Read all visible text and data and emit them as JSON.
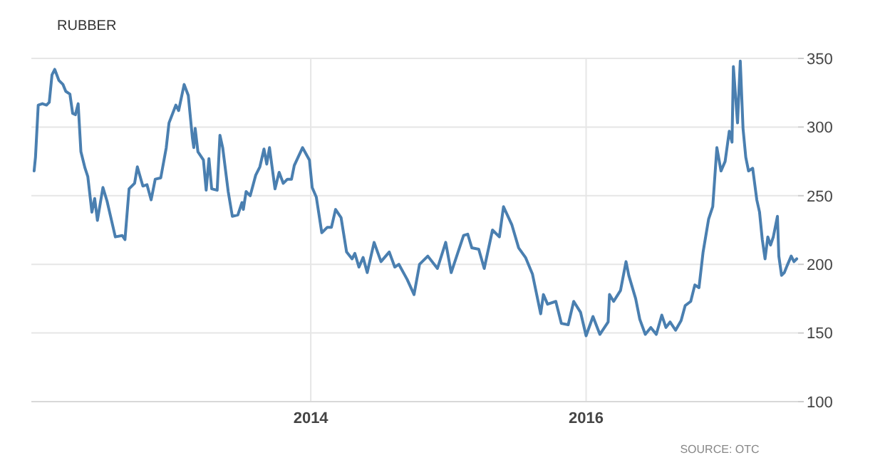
{
  "chart_data": {
    "type": "line",
    "title": "RUBBER",
    "annotations": [
      "SOURCE: OTC"
    ],
    "xlim": [
      2011.97,
      2017.54
    ],
    "xticks": [
      2014,
      2016
    ],
    "ylim": [
      100,
      350
    ],
    "yticks": [
      100,
      150,
      200,
      250,
      300,
      350
    ],
    "grid": true,
    "marker": "none",
    "line_style": "solid",
    "series": [
      {
        "color": "#4a7fb0",
        "x": [
          2011.99,
          2012.0,
          2012.02,
          2012.05,
          2012.08,
          2012.1,
          2012.12,
          2012.14,
          2012.17,
          2012.2,
          2012.22,
          2012.25,
          2012.27,
          2012.29,
          2012.31,
          2012.33,
          2012.36,
          2012.38,
          2012.41,
          2012.43,
          2012.45,
          2012.49,
          2012.52,
          2012.58,
          2012.63,
          2012.65,
          2012.68,
          2012.72,
          2012.74,
          2012.78,
          2012.81,
          2012.84,
          2012.87,
          2012.91,
          2012.95,
          2012.97,
          2013.02,
          2013.04,
          2013.08,
          2013.11,
          2013.14,
          2013.15,
          2013.16,
          2013.18,
          2013.22,
          2013.24,
          2013.26,
          2013.28,
          2013.32,
          2013.34,
          2013.36,
          2013.4,
          2013.43,
          2013.47,
          2013.5,
          2013.51,
          2013.53,
          2013.56,
          2013.6,
          2013.63,
          2013.66,
          2013.68,
          2013.7,
          2013.74,
          2013.77,
          2013.8,
          2013.83,
          2013.86,
          2013.88,
          2013.94,
          2013.99,
          2014.01,
          2014.04,
          2014.08,
          2014.12,
          2014.15,
          2014.18,
          2014.22,
          2014.26,
          2014.3,
          2014.32,
          2014.35,
          2014.38,
          2014.41,
          2014.46,
          2014.51,
          2014.57,
          2014.61,
          2014.64,
          2014.7,
          2014.75,
          2014.79,
          2014.85,
          2014.92,
          2014.98,
          2015.02,
          2015.06,
          2015.11,
          2015.14,
          2015.17,
          2015.22,
          2015.26,
          2015.32,
          2015.37,
          2015.4,
          2015.46,
          2015.51,
          2015.56,
          2015.61,
          2015.67,
          2015.69,
          2015.72,
          2015.78,
          2015.82,
          2015.87,
          2015.91,
          2015.96,
          2016.0,
          2016.05,
          2016.1,
          2016.16,
          2016.17,
          2016.2,
          2016.25,
          2016.29,
          2016.31,
          2016.36,
          2016.39,
          2016.43,
          2016.47,
          2016.51,
          2016.55,
          2016.58,
          2016.61,
          2016.65,
          2016.69,
          2016.72,
          2016.76,
          2016.79,
          2016.82,
          2016.85,
          2016.89,
          2016.92,
          2016.95,
          2016.98,
          2017.01,
          2017.04,
          2017.06,
          2017.07,
          2017.1,
          2017.12,
          2017.14,
          2017.16,
          2017.18,
          2017.21,
          2017.24,
          2017.26,
          2017.28,
          2017.3,
          2017.32,
          2017.34,
          2017.36,
          2017.39,
          2017.4,
          2017.42,
          2017.44,
          2017.46,
          2017.49,
          2017.51,
          2017.53
        ],
        "values": [
          268,
          278,
          316,
          317,
          316,
          318,
          338,
          342,
          334,
          331,
          326,
          324,
          310,
          309,
          317,
          282,
          270,
          264,
          238,
          248,
          232,
          256,
          246,
          220,
          221,
          218,
          255,
          259,
          271,
          257,
          258,
          247,
          262,
          263,
          285,
          303,
          316,
          312,
          331,
          323,
          292,
          285,
          299,
          282,
          276,
          254,
          277,
          255,
          254,
          294,
          285,
          253,
          235,
          236,
          245,
          240,
          253,
          250,
          265,
          271,
          284,
          273,
          285,
          255,
          267,
          259,
          262,
          262,
          272,
          285,
          276,
          256,
          249,
          223,
          227,
          227,
          240,
          234,
          209,
          204,
          208,
          198,
          205,
          194,
          216,
          202,
          209,
          198,
          200,
          189,
          178,
          200,
          206,
          197,
          216,
          194,
          206,
          221,
          222,
          212,
          211,
          197,
          225,
          220,
          242,
          229,
          212,
          205,
          193,
          164,
          178,
          171,
          173,
          157,
          156,
          173,
          165,
          148,
          162,
          149,
          158,
          178,
          173,
          181,
          202,
          192,
          175,
          160,
          149,
          154,
          149,
          163,
          154,
          158,
          152,
          159,
          170,
          173,
          185,
          183,
          209,
          233,
          242,
          285,
          268,
          275,
          297,
          289,
          344,
          303,
          348,
          299,
          278,
          268,
          270,
          247,
          238,
          218,
          204,
          220,
          214,
          220,
          235,
          206,
          192,
          194,
          199,
          206,
          202,
          204
        ]
      }
    ]
  }
}
